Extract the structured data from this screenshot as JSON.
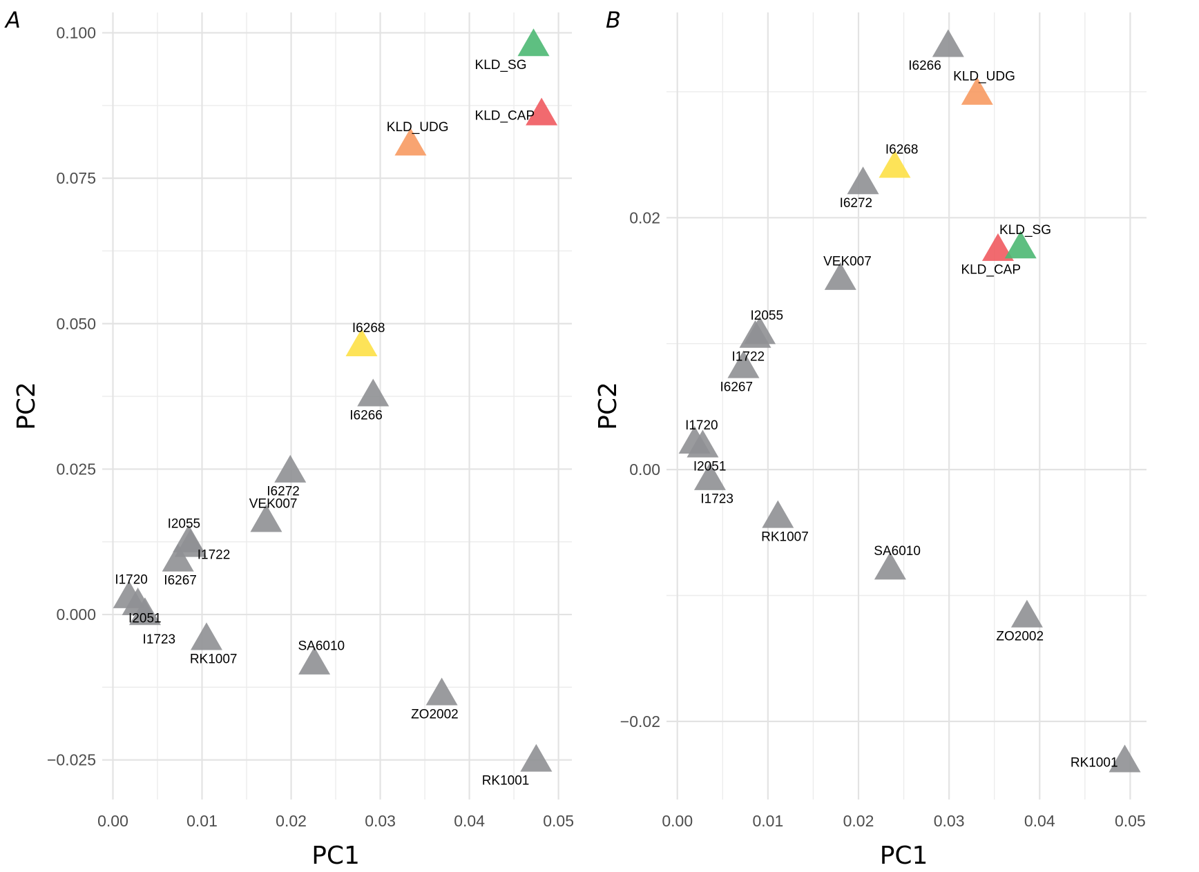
{
  "figure": {
    "marker": "triangle",
    "colors": {
      "KLD_SG": "#4db873",
      "KLD_CAP": "#ef5a5f",
      "KLD_UDG": "#f79a62",
      "I6268": "#fde046",
      "default": "#8f9094"
    }
  },
  "chart_data": [
    {
      "type": "scatter",
      "panel": "A",
      "title": "",
      "xlabel": "PC1",
      "ylabel": "PC2",
      "xlim": [
        -0.0012,
        0.0515
      ],
      "ylim": [
        -0.0318,
        0.1035
      ],
      "grid": true,
      "x_ticks": [
        0.0,
        0.01,
        0.02,
        0.03,
        0.04,
        0.05
      ],
      "x_tick_labels": [
        "0.00",
        "0.01",
        "0.02",
        "0.03",
        "0.04",
        "0.05"
      ],
      "y_ticks": [
        -0.025,
        0.0,
        0.025,
        0.05,
        0.075,
        0.1
      ],
      "y_tick_labels": [
        "−0.025",
        "0.000",
        "0.025",
        "0.050",
        "0.075",
        "0.100"
      ],
      "points": [
        {
          "label": "KLD_SG",
          "x": 0.0472,
          "y": 0.0978,
          "lx": -1,
          "ly": 1
        },
        {
          "label": "KLD_CAP",
          "x": 0.0481,
          "y": 0.0859,
          "lx": -1,
          "ly": 0
        },
        {
          "label": "KLD_UDG",
          "x": 0.0334,
          "y": 0.0807,
          "lx": 0.3,
          "ly": -1
        },
        {
          "label": "I6268",
          "x": 0.0279,
          "y": 0.0462,
          "lx": 0.3,
          "ly": -1
        },
        {
          "label": "I6266",
          "x": 0.0292,
          "y": 0.0376,
          "lx": -0.3,
          "ly": 1
        },
        {
          "label": "I6272",
          "x": 0.0199,
          "y": 0.0245,
          "lx": -0.3,
          "ly": 1
        },
        {
          "label": "VEK007",
          "x": 0.0172,
          "y": 0.016,
          "lx": 0.3,
          "ly": -1
        },
        {
          "label": "I2055",
          "x": 0.0085,
          "y": 0.0125,
          "lx": -0.2,
          "ly": -1
        },
        {
          "label": "I1722",
          "x": 0.0087,
          "y": 0.0117,
          "lx": 1,
          "ly": 0.4
        },
        {
          "label": "I6267",
          "x": 0.0073,
          "y": 0.0092,
          "lx": 0.1,
          "ly": 1
        },
        {
          "label": "I1720",
          "x": 0.0018,
          "y": 0.0029,
          "lx": 0.1,
          "ly": -1
        },
        {
          "label": "I2051",
          "x": 0.0028,
          "y": 0.0017,
          "lx": 0.3,
          "ly": 0.7
        },
        {
          "label": "I1723",
          "x": 0.0036,
          "y": 0.0,
          "lx": 0.6,
          "ly": 1.3
        },
        {
          "label": "RK1007",
          "x": 0.0105,
          "y": -0.0043,
          "lx": 0.3,
          "ly": 1
        },
        {
          "label": "SA6010",
          "x": 0.0226,
          "y": -0.0085,
          "lx": 0.3,
          "ly": -1
        },
        {
          "label": "ZO2002",
          "x": 0.0369,
          "y": -0.0138,
          "lx": -0.3,
          "ly": 1
        },
        {
          "label": "RK1001",
          "x": 0.0475,
          "y": -0.0252,
          "lx": -0.9,
          "ly": 1
        }
      ]
    },
    {
      "type": "scatter",
      "panel": "B",
      "title": "",
      "xlabel": "PC1",
      "ylabel": "PC2",
      "xlim": [
        -0.0012,
        0.0518
      ],
      "ylim": [
        -0.0262,
        0.0363
      ],
      "grid": true,
      "x_ticks": [
        0.0,
        0.01,
        0.02,
        0.03,
        0.04,
        0.05
      ],
      "x_tick_labels": [
        "0.00",
        "0.01",
        "0.02",
        "0.03",
        "0.04",
        "0.05"
      ],
      "y_ticks": [
        -0.02,
        0.0,
        0.02
      ],
      "y_tick_labels": [
        "−0.02",
        "0.00",
        "0.02"
      ],
      "points": [
        {
          "label": "I6266",
          "x": 0.0299,
          "y": 0.0336,
          "lx": -0.9,
          "ly": 1
        },
        {
          "label": "KLD_UDG",
          "x": 0.0331,
          "y": 0.0298,
          "lx": 0.3,
          "ly": -1
        },
        {
          "label": "I6268",
          "x": 0.024,
          "y": 0.024,
          "lx": 0.3,
          "ly": -1
        },
        {
          "label": "I6272",
          "x": 0.0205,
          "y": 0.0227,
          "lx": -0.3,
          "ly": 1
        },
        {
          "label": "KLD_CAP",
          "x": 0.0354,
          "y": 0.0174,
          "lx": -0.3,
          "ly": 1
        },
        {
          "label": "KLD_SG",
          "x": 0.0379,
          "y": 0.0176,
          "lx": 0.2,
          "ly": -1
        },
        {
          "label": "VEK007",
          "x": 0.018,
          "y": 0.0151,
          "lx": 0.3,
          "ly": -1
        },
        {
          "label": "I2055",
          "x": 0.0091,
          "y": 0.0108,
          "lx": 0.3,
          "ly": -1
        },
        {
          "label": "I1722",
          "x": 0.0086,
          "y": 0.0105,
          "lx": -0.3,
          "ly": 1
        },
        {
          "label": "I6267",
          "x": 0.0073,
          "y": 0.0081,
          "lx": -0.3,
          "ly": 1
        },
        {
          "label": "I1720",
          "x": 0.0019,
          "y": 0.0021,
          "lx": 0.3,
          "ly": -1
        },
        {
          "label": "I2051",
          "x": 0.0028,
          "y": 0.0018,
          "lx": 0.3,
          "ly": 1
        },
        {
          "label": "I1723",
          "x": 0.0036,
          "y": -0.0008,
          "lx": 0.3,
          "ly": 1
        },
        {
          "label": "RK1007",
          "x": 0.0111,
          "y": -0.0038,
          "lx": 0.3,
          "ly": 1
        },
        {
          "label": "SA6010",
          "x": 0.0235,
          "y": -0.0079,
          "lx": 0.3,
          "ly": -1
        },
        {
          "label": "ZO2002",
          "x": 0.0386,
          "y": -0.0117,
          "lx": -0.3,
          "ly": 1
        },
        {
          "label": "RK1001",
          "x": 0.0494,
          "y": -0.0232,
          "lx": -1,
          "ly": 0
        }
      ]
    }
  ]
}
